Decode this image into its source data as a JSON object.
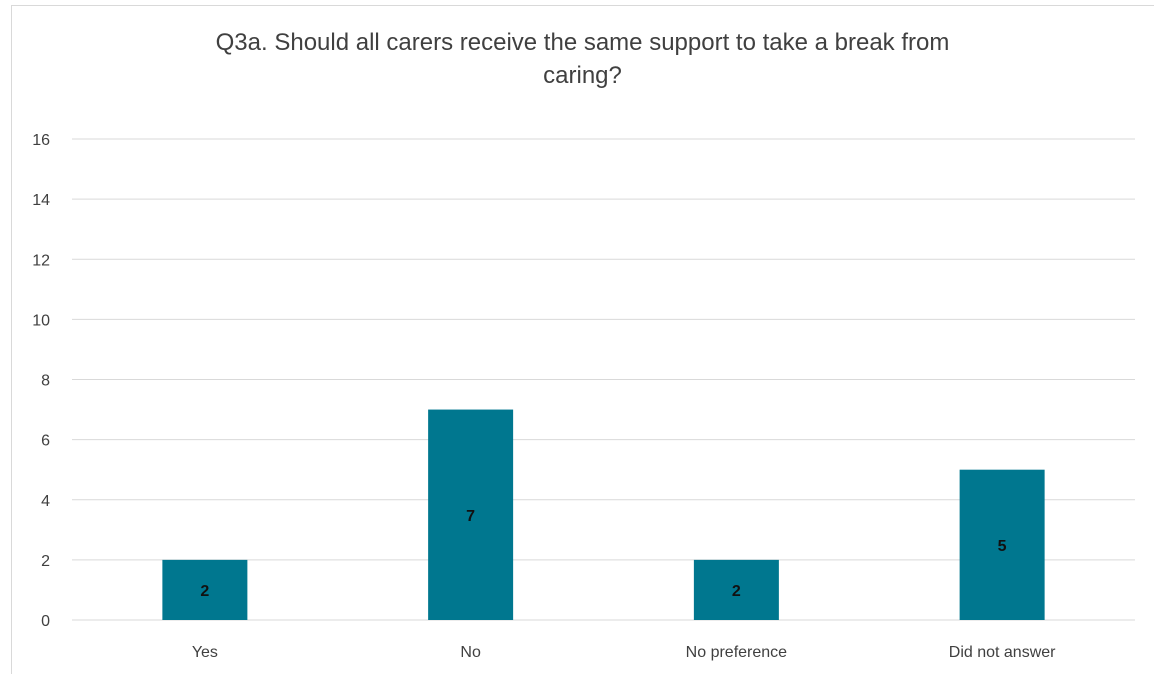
{
  "chart_data": {
    "type": "bar",
    "title_lines": [
      "Q3a. Should all carers receive the same support to take a break from",
      "caring?"
    ],
    "categories": [
      "Yes",
      "No",
      "No preference",
      "Did not answer"
    ],
    "values": [
      2,
      7,
      2,
      5
    ],
    "data_labels": [
      "2",
      "7",
      "2",
      "5"
    ],
    "xlabel": "",
    "ylabel": "",
    "ylim": [
      0,
      16
    ],
    "yticks": [
      0,
      2,
      4,
      6,
      8,
      10,
      12,
      14,
      16
    ],
    "grid": true,
    "legend": "none",
    "bar_color": "#00778f",
    "grid_color": "#d9d9d9",
    "text_color": "#404040"
  }
}
